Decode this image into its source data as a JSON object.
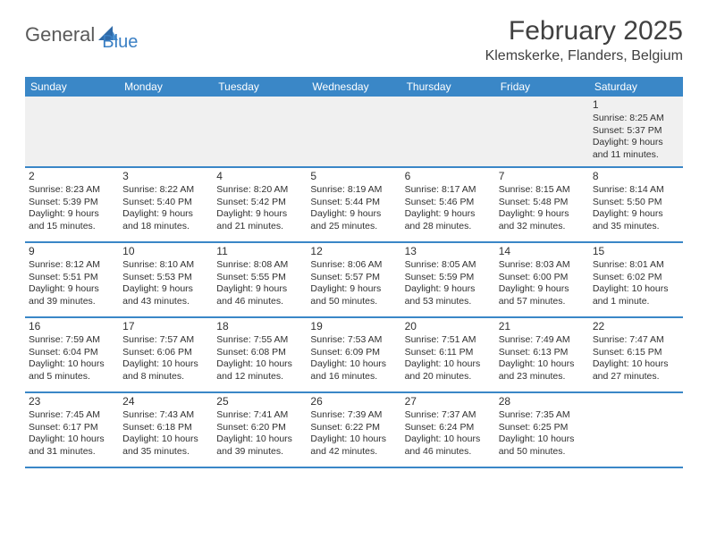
{
  "logo": {
    "part1": "General",
    "part2": "Blue"
  },
  "title": "February 2025",
  "location": "Klemskerke, Flanders, Belgium",
  "header_bg": "#3a87c7",
  "weekdays": [
    "Sunday",
    "Monday",
    "Tuesday",
    "Wednesday",
    "Thursday",
    "Friday",
    "Saturday"
  ],
  "weeks": [
    [
      {
        "num": "",
        "sunrise": "",
        "sunset": "",
        "daylight": ""
      },
      {
        "num": "",
        "sunrise": "",
        "sunset": "",
        "daylight": ""
      },
      {
        "num": "",
        "sunrise": "",
        "sunset": "",
        "daylight": ""
      },
      {
        "num": "",
        "sunrise": "",
        "sunset": "",
        "daylight": ""
      },
      {
        "num": "",
        "sunrise": "",
        "sunset": "",
        "daylight": ""
      },
      {
        "num": "",
        "sunrise": "",
        "sunset": "",
        "daylight": ""
      },
      {
        "num": "1",
        "sunrise": "Sunrise: 8:25 AM",
        "sunset": "Sunset: 5:37 PM",
        "daylight": "Daylight: 9 hours and 11 minutes."
      }
    ],
    [
      {
        "num": "2",
        "sunrise": "Sunrise: 8:23 AM",
        "sunset": "Sunset: 5:39 PM",
        "daylight": "Daylight: 9 hours and 15 minutes."
      },
      {
        "num": "3",
        "sunrise": "Sunrise: 8:22 AM",
        "sunset": "Sunset: 5:40 PM",
        "daylight": "Daylight: 9 hours and 18 minutes."
      },
      {
        "num": "4",
        "sunrise": "Sunrise: 8:20 AM",
        "sunset": "Sunset: 5:42 PM",
        "daylight": "Daylight: 9 hours and 21 minutes."
      },
      {
        "num": "5",
        "sunrise": "Sunrise: 8:19 AM",
        "sunset": "Sunset: 5:44 PM",
        "daylight": "Daylight: 9 hours and 25 minutes."
      },
      {
        "num": "6",
        "sunrise": "Sunrise: 8:17 AM",
        "sunset": "Sunset: 5:46 PM",
        "daylight": "Daylight: 9 hours and 28 minutes."
      },
      {
        "num": "7",
        "sunrise": "Sunrise: 8:15 AM",
        "sunset": "Sunset: 5:48 PM",
        "daylight": "Daylight: 9 hours and 32 minutes."
      },
      {
        "num": "8",
        "sunrise": "Sunrise: 8:14 AM",
        "sunset": "Sunset: 5:50 PM",
        "daylight": "Daylight: 9 hours and 35 minutes."
      }
    ],
    [
      {
        "num": "9",
        "sunrise": "Sunrise: 8:12 AM",
        "sunset": "Sunset: 5:51 PM",
        "daylight": "Daylight: 9 hours and 39 minutes."
      },
      {
        "num": "10",
        "sunrise": "Sunrise: 8:10 AM",
        "sunset": "Sunset: 5:53 PM",
        "daylight": "Daylight: 9 hours and 43 minutes."
      },
      {
        "num": "11",
        "sunrise": "Sunrise: 8:08 AM",
        "sunset": "Sunset: 5:55 PM",
        "daylight": "Daylight: 9 hours and 46 minutes."
      },
      {
        "num": "12",
        "sunrise": "Sunrise: 8:06 AM",
        "sunset": "Sunset: 5:57 PM",
        "daylight": "Daylight: 9 hours and 50 minutes."
      },
      {
        "num": "13",
        "sunrise": "Sunrise: 8:05 AM",
        "sunset": "Sunset: 5:59 PM",
        "daylight": "Daylight: 9 hours and 53 minutes."
      },
      {
        "num": "14",
        "sunrise": "Sunrise: 8:03 AM",
        "sunset": "Sunset: 6:00 PM",
        "daylight": "Daylight: 9 hours and 57 minutes."
      },
      {
        "num": "15",
        "sunrise": "Sunrise: 8:01 AM",
        "sunset": "Sunset: 6:02 PM",
        "daylight": "Daylight: 10 hours and 1 minute."
      }
    ],
    [
      {
        "num": "16",
        "sunrise": "Sunrise: 7:59 AM",
        "sunset": "Sunset: 6:04 PM",
        "daylight": "Daylight: 10 hours and 5 minutes."
      },
      {
        "num": "17",
        "sunrise": "Sunrise: 7:57 AM",
        "sunset": "Sunset: 6:06 PM",
        "daylight": "Daylight: 10 hours and 8 minutes."
      },
      {
        "num": "18",
        "sunrise": "Sunrise: 7:55 AM",
        "sunset": "Sunset: 6:08 PM",
        "daylight": "Daylight: 10 hours and 12 minutes."
      },
      {
        "num": "19",
        "sunrise": "Sunrise: 7:53 AM",
        "sunset": "Sunset: 6:09 PM",
        "daylight": "Daylight: 10 hours and 16 minutes."
      },
      {
        "num": "20",
        "sunrise": "Sunrise: 7:51 AM",
        "sunset": "Sunset: 6:11 PM",
        "daylight": "Daylight: 10 hours and 20 minutes."
      },
      {
        "num": "21",
        "sunrise": "Sunrise: 7:49 AM",
        "sunset": "Sunset: 6:13 PM",
        "daylight": "Daylight: 10 hours and 23 minutes."
      },
      {
        "num": "22",
        "sunrise": "Sunrise: 7:47 AM",
        "sunset": "Sunset: 6:15 PM",
        "daylight": "Daylight: 10 hours and 27 minutes."
      }
    ],
    [
      {
        "num": "23",
        "sunrise": "Sunrise: 7:45 AM",
        "sunset": "Sunset: 6:17 PM",
        "daylight": "Daylight: 10 hours and 31 minutes."
      },
      {
        "num": "24",
        "sunrise": "Sunrise: 7:43 AM",
        "sunset": "Sunset: 6:18 PM",
        "daylight": "Daylight: 10 hours and 35 minutes."
      },
      {
        "num": "25",
        "sunrise": "Sunrise: 7:41 AM",
        "sunset": "Sunset: 6:20 PM",
        "daylight": "Daylight: 10 hours and 39 minutes."
      },
      {
        "num": "26",
        "sunrise": "Sunrise: 7:39 AM",
        "sunset": "Sunset: 6:22 PM",
        "daylight": "Daylight: 10 hours and 42 minutes."
      },
      {
        "num": "27",
        "sunrise": "Sunrise: 7:37 AM",
        "sunset": "Sunset: 6:24 PM",
        "daylight": "Daylight: 10 hours and 46 minutes."
      },
      {
        "num": "28",
        "sunrise": "Sunrise: 7:35 AM",
        "sunset": "Sunset: 6:25 PM",
        "daylight": "Daylight: 10 hours and 50 minutes."
      },
      {
        "num": "",
        "sunrise": "",
        "sunset": "",
        "daylight": ""
      }
    ]
  ]
}
